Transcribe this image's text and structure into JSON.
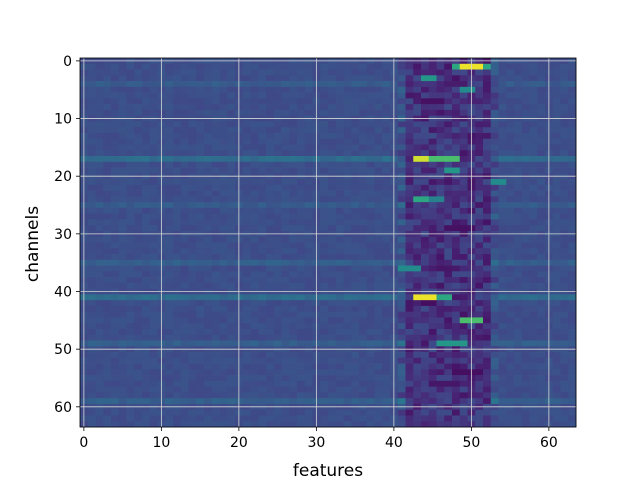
{
  "chart_data": {
    "type": "heatmap",
    "title": "",
    "xlabel": "features",
    "ylabel": "channels",
    "n_cols": 64,
    "n_rows": 64,
    "xlim": [
      -0.5,
      63.5
    ],
    "ylim": [
      63.5,
      -0.5
    ],
    "x_ticks": [
      0,
      10,
      20,
      30,
      40,
      50,
      60
    ],
    "y_ticks": [
      0,
      10,
      20,
      30,
      40,
      50,
      60
    ],
    "grid": true,
    "colormap": "viridis",
    "value_range": [
      0,
      1
    ],
    "base_value": 0.3,
    "background_bands": [
      {
        "cols": [
          42,
          52
        ],
        "value": 0.18
      }
    ],
    "row_overrides": [
      {
        "row": 17,
        "cols": [
          0,
          63
        ],
        "value": 0.44
      },
      {
        "row": 41,
        "cols": [
          0,
          63
        ],
        "value": 0.44
      },
      {
        "row": 35,
        "cols": [
          0,
          63
        ],
        "value": 0.38
      },
      {
        "row": 49,
        "cols": [
          0,
          63
        ],
        "value": 0.38
      },
      {
        "row": 59,
        "cols": [
          0,
          63
        ],
        "value": 0.38
      },
      {
        "row": 4,
        "cols": [
          0,
          63
        ],
        "value": 0.36
      },
      {
        "row": 25,
        "cols": [
          0,
          63
        ],
        "value": 0.36
      }
    ],
    "hotspots": [
      {
        "row": 1,
        "cols": [
          49,
          51
        ],
        "value": 0.98
      },
      {
        "row": 1,
        "cols": [
          48,
          48
        ],
        "value": 0.7
      },
      {
        "row": 1,
        "cols": [
          52,
          52
        ],
        "value": 0.7
      },
      {
        "row": 3,
        "cols": [
          44,
          45
        ],
        "value": 0.65
      },
      {
        "row": 4,
        "cols": [
          47,
          49
        ],
        "value": 0.1
      },
      {
        "row": 5,
        "cols": [
          49,
          50
        ],
        "value": 0.6
      },
      {
        "row": 7,
        "cols": [
          44,
          46
        ],
        "value": 0.06
      },
      {
        "row": 17,
        "cols": [
          43,
          44
        ],
        "value": 0.95
      },
      {
        "row": 17,
        "cols": [
          45,
          48
        ],
        "value": 0.78
      },
      {
        "row": 19,
        "cols": [
          47,
          48
        ],
        "value": 0.65
      },
      {
        "row": 21,
        "cols": [
          53,
          54
        ],
        "value": 0.6
      },
      {
        "row": 24,
        "cols": [
          43,
          44
        ],
        "value": 0.7
      },
      {
        "row": 24,
        "cols": [
          45,
          46
        ],
        "value": 0.55
      },
      {
        "row": 29,
        "cols": [
          47,
          50
        ],
        "value": 0.06
      },
      {
        "row": 36,
        "cols": [
          41,
          43
        ],
        "value": 0.6
      },
      {
        "row": 41,
        "cols": [
          43,
          45
        ],
        "value": 0.98
      },
      {
        "row": 41,
        "cols": [
          46,
          47
        ],
        "value": 0.7
      },
      {
        "row": 42,
        "cols": [
          44,
          45
        ],
        "value": 0.05
      },
      {
        "row": 45,
        "cols": [
          49,
          51
        ],
        "value": 0.78
      },
      {
        "row": 49,
        "cols": [
          46,
          49
        ],
        "value": 0.65
      },
      {
        "row": 54,
        "cols": [
          48,
          51
        ],
        "value": 0.05
      },
      {
        "row": 56,
        "cols": [
          45,
          48
        ],
        "value": 0.08
      }
    ]
  }
}
